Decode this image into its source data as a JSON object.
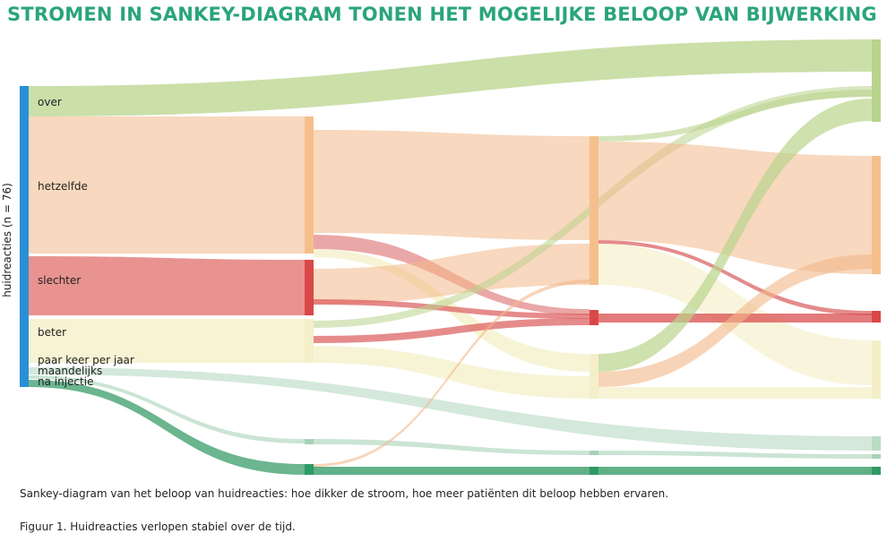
{
  "title": "STROMEN IN SANKEY-DIAGRAM TONEN HET MOGELIJKE BELOOP VAN BIJWERKING",
  "axis_label": "huidreacties (n = 76)",
  "categories": [
    "over",
    "hetzelfde",
    "slechter",
    "beter",
    "paar keer per jaar",
    "maandelijks",
    "na injectie"
  ],
  "caption": "Sankey-diagram van het beloop van huidreacties: hoe dikker de stroom, hoe meer patiënten dit beloop hebben ervaren.",
  "figure_caption": "Figuur 1. Huidreacties verlopen stabiel over de tijd.",
  "colors": {
    "title": "#2aa57a",
    "axis_bar": "#2b8fd6",
    "over": "#b9d48c",
    "hetzelfde": "#f2b889",
    "slechter": "#d94f4f",
    "beter": "#f4efc4",
    "maandelijks": "#a9d2b8",
    "na_injectie": "#3a9c6a"
  }
}
